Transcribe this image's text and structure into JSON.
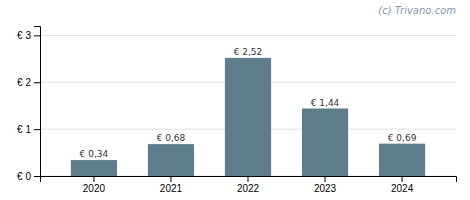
{
  "chart_data": {
    "type": "bar",
    "annotation": "(c) Trivano.com",
    "categories": [
      "2020",
      "2021",
      "2022",
      "2023",
      "2024"
    ],
    "values": [
      0.34,
      0.68,
      2.52,
      1.44,
      0.69
    ],
    "value_labels": [
      "€ 0,34",
      "€ 0,68",
      "€ 2,52",
      "€ 1,44",
      "€ 0,69"
    ],
    "color": "#607d8b",
    "ylim": [
      0,
      3.2
    ],
    "yticks": [
      {
        "value": 0,
        "label": "€ 0"
      },
      {
        "value": 1,
        "label": "€ 1"
      },
      {
        "value": 2,
        "label": "€ 2"
      },
      {
        "value": 3,
        "label": "€ 3"
      }
    ],
    "grid": true,
    "data_labels": true
  }
}
